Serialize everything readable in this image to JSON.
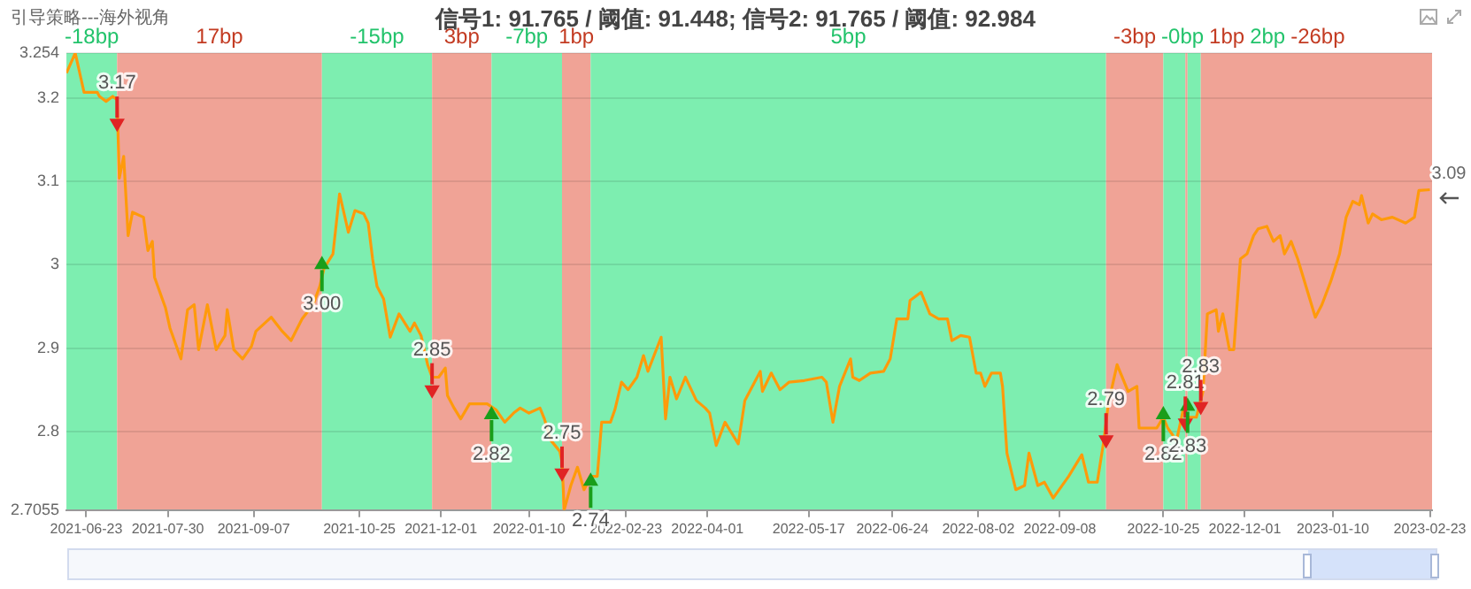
{
  "chart_data": {
    "type": "line",
    "title": "引导策略---海外视角",
    "subtitle": "信号1: 91.765 / 阈值: 91.448; 信号2: 91.765 / 阈值: 92.984",
    "xlim": [
      "2021-06-14",
      "2023-02-24"
    ],
    "xticks": [
      "2021-06-23",
      "2021-07-30",
      "2021-09-07",
      "2021-10-25",
      "2021-12-01",
      "2022-01-10",
      "2022-02-23",
      "2022-04-01",
      "2022-05-17",
      "2022-06-24",
      "2022-08-02",
      "2022-09-08",
      "2022-10-25",
      "2022-12-01",
      "2023-01-10",
      "2023-02-23"
    ],
    "ylim": [
      2.7055,
      3.254
    ],
    "yticks": [
      2.7055,
      2.8,
      2.9,
      3,
      3.1,
      3.2,
      3.254
    ],
    "grid": "y",
    "bands": [
      {
        "axis": "x",
        "from": "2021-06-14",
        "to": "2021-07-07",
        "label": "-18bp",
        "color": "#7deeb0"
      },
      {
        "axis": "x",
        "from": "2021-07-07",
        "to": "2021-10-08",
        "label": "17bp",
        "color": "#f0a396"
      },
      {
        "axis": "x",
        "from": "2021-10-08",
        "to": "2021-11-27",
        "label": "-15bp",
        "color": "#7deeb0"
      },
      {
        "axis": "x",
        "from": "2021-11-27",
        "to": "2021-12-24",
        "label": "3bp",
        "color": "#f0a396"
      },
      {
        "axis": "x",
        "from": "2021-12-24",
        "to": "2022-01-25",
        "label": "-7bp",
        "color": "#7deeb0"
      },
      {
        "axis": "x",
        "from": "2022-01-25",
        "to": "2022-02-07",
        "label": "1bp",
        "color": "#f0a396"
      },
      {
        "axis": "x",
        "from": "2022-02-07",
        "to": "2022-09-29",
        "label": "5bp",
        "color": "#7deeb0"
      },
      {
        "axis": "x",
        "from": "2022-09-29",
        "to": "2022-10-25",
        "label": "-3bp",
        "color": "#f0a396"
      },
      {
        "axis": "x",
        "from": "2022-10-25",
        "to": "2022-11-04",
        "label": "-0bp",
        "color": "#7deeb0"
      },
      {
        "axis": "x",
        "from": "2022-11-04",
        "to": "2022-11-05",
        "label": "1bp",
        "color": "#f0a396"
      },
      {
        "axis": "x",
        "from": "2022-11-05",
        "to": "2022-11-11",
        "label": "2bp",
        "color": "#7deeb0"
      },
      {
        "axis": "x",
        "from": "2022-11-11",
        "to": "2023-02-24",
        "label": "-26bp",
        "color": "#f0a396"
      }
    ],
    "series": [
      {
        "type": "line",
        "color": "#ff9a0a",
        "x": [
          "2021-06-14",
          "2021-06-18",
          "2021-06-22",
          "2021-06-28",
          "2021-06-29",
          "2021-07-02",
          "2021-07-05",
          "2021-07-07",
          "2021-07-08",
          "2021-07-10",
          "2021-07-12",
          "2021-07-14",
          "2021-07-19",
          "2021-07-21",
          "2021-07-23",
          "2021-07-24",
          "2021-07-29",
          "2021-07-31",
          "2021-08-05",
          "2021-08-08",
          "2021-08-11",
          "2021-08-13",
          "2021-08-17",
          "2021-08-21",
          "2021-08-25",
          "2021-08-26",
          "2021-08-29",
          "2021-09-02",
          "2021-09-06",
          "2021-09-08",
          "2021-09-15",
          "2021-09-20",
          "2021-09-24",
          "2021-09-29",
          "2021-10-04",
          "2021-10-07",
          "2021-10-09",
          "2021-10-13",
          "2021-10-16",
          "2021-10-20",
          "2021-10-23",
          "2021-10-27",
          "2021-10-29",
          "2021-10-31",
          "2021-11-02",
          "2021-11-05",
          "2021-11-08",
          "2021-11-12",
          "2021-11-17",
          "2021-11-19",
          "2021-11-22",
          "2021-11-25",
          "2021-11-27",
          "2021-11-30",
          "2021-12-03",
          "2021-12-04",
          "2021-12-07",
          "2021-12-10",
          "2021-12-14",
          "2021-12-22",
          "2021-12-26",
          "2021-12-30",
          "2022-01-03",
          "2022-01-06",
          "2022-01-10",
          "2022-01-15",
          "2022-01-17",
          "2022-01-20",
          "2022-01-24",
          "2022-01-25",
          "2022-01-26",
          "2022-01-29",
          "2022-02-01",
          "2022-02-04",
          "2022-02-07",
          "2022-02-10",
          "2022-02-12",
          "2022-02-16",
          "2022-02-18",
          "2022-02-21",
          "2022-02-24",
          "2022-02-28",
          "2022-03-03",
          "2022-03-05",
          "2022-03-11",
          "2022-03-13",
          "2022-03-15",
          "2022-03-18",
          "2022-03-22",
          "2022-03-27",
          "2022-03-31",
          "2022-04-02",
          "2022-04-05",
          "2022-04-09",
          "2022-04-15",
          "2022-04-18",
          "2022-04-25",
          "2022-04-26",
          "2022-04-30",
          "2022-05-04",
          "2022-05-08",
          "2022-05-15",
          "2022-05-23",
          "2022-05-25",
          "2022-05-28",
          "2022-05-31",
          "2022-06-05",
          "2022-06-06",
          "2022-06-09",
          "2022-06-14",
          "2022-06-20",
          "2022-06-23",
          "2022-06-26",
          "2022-07-01",
          "2022-07-02",
          "2022-07-07",
          "2022-07-11",
          "2022-07-15",
          "2022-07-19",
          "2022-07-21",
          "2022-07-25",
          "2022-07-29",
          "2022-08-01",
          "2022-08-03",
          "2022-08-05",
          "2022-08-08",
          "2022-08-12",
          "2022-08-13",
          "2022-08-15",
          "2022-08-19",
          "2022-08-23",
          "2022-08-25",
          "2022-08-29",
          "2022-09-01",
          "2022-09-05",
          "2022-09-12",
          "2022-09-18",
          "2022-09-21",
          "2022-09-25",
          "2022-09-28",
          "2022-09-30",
          "2022-10-04",
          "2022-10-09",
          "2022-10-13",
          "2022-10-14",
          "2022-10-22",
          "2022-10-25",
          "2022-10-27",
          "2022-10-31",
          "2022-11-03",
          "2022-11-05",
          "2022-11-09",
          "2022-11-12",
          "2022-11-14",
          "2022-11-18",
          "2022-11-19",
          "2022-11-21",
          "2022-11-24",
          "2022-11-26",
          "2022-11-29",
          "2022-12-02",
          "2022-12-05",
          "2022-12-07",
          "2022-12-11",
          "2022-12-14",
          "2022-12-17",
          "2022-12-19",
          "2022-12-22",
          "2022-12-25",
          "2023-01-02",
          "2023-01-05",
          "2023-01-09",
          "2023-01-13",
          "2023-01-16",
          "2023-01-19",
          "2023-01-22",
          "2023-01-23",
          "2023-01-26",
          "2023-01-28",
          "2023-02-01",
          "2023-02-06",
          "2023-02-12",
          "2023-02-16",
          "2023-02-18",
          "2023-02-23"
        ],
        "values": [
          3.23,
          3.254,
          3.207,
          3.207,
          3.202,
          3.196,
          3.202,
          3.198,
          3.104,
          3.13,
          3.035,
          3.063,
          3.057,
          3.017,
          3.028,
          2.985,
          2.948,
          2.924,
          2.887,
          2.946,
          2.952,
          2.898,
          2.952,
          2.898,
          2.915,
          2.946,
          2.898,
          2.887,
          2.902,
          2.92,
          2.937,
          2.92,
          2.909,
          2.935,
          2.952,
          2.974,
          2.996,
          3.013,
          3.085,
          3.039,
          3.065,
          3.061,
          3.05,
          3.007,
          2.974,
          2.959,
          2.913,
          2.941,
          2.92,
          2.93,
          2.915,
          2.88,
          2.865,
          2.865,
          2.876,
          2.843,
          2.828,
          2.815,
          2.833,
          2.833,
          2.826,
          2.811,
          2.822,
          2.828,
          2.822,
          2.828,
          2.815,
          2.789,
          2.776,
          2.763,
          2.706,
          2.735,
          2.757,
          2.73,
          2.746,
          2.746,
          2.811,
          2.811,
          2.826,
          2.859,
          2.85,
          2.865,
          2.891,
          2.872,
          2.913,
          2.815,
          2.865,
          2.839,
          2.865,
          2.837,
          2.828,
          2.822,
          2.783,
          2.811,
          2.785,
          2.837,
          2.872,
          2.848,
          2.87,
          2.85,
          2.859,
          2.861,
          2.865,
          2.859,
          2.811,
          2.854,
          2.887,
          2.865,
          2.861,
          2.87,
          2.872,
          2.887,
          2.935,
          2.935,
          2.957,
          2.967,
          2.941,
          2.935,
          2.935,
          2.909,
          2.915,
          2.913,
          2.87,
          2.87,
          2.854,
          2.87,
          2.87,
          2.854,
          2.774,
          2.73,
          2.735,
          2.774,
          2.735,
          2.739,
          2.72,
          2.746,
          2.772,
          2.739,
          2.739,
          2.789,
          2.833,
          2.88,
          2.848,
          2.854,
          2.804,
          2.804,
          2.817,
          2.804,
          2.789,
          2.826,
          2.817,
          2.817,
          2.848,
          2.941,
          2.946,
          2.92,
          2.941,
          2.898,
          2.898,
          3.007,
          3.013,
          3.035,
          3.043,
          3.046,
          3.028,
          3.035,
          3.013,
          3.028,
          3.007,
          2.937,
          2.952,
          2.98,
          3.013,
          3.057,
          3.076,
          3.072,
          3.083,
          3.05,
          3.061,
          3.054,
          3.057,
          3.05,
          3.057,
          3.089,
          3.09
        ]
      },
      {
        "type": "scatter",
        "color": "#e02424",
        "x": [
          "2021-07-07",
          "2021-11-27",
          "2022-01-25",
          "2022-09-29",
          "2022-11-04",
          "2022-11-11"
        ],
        "values": [
          3.17,
          2.85,
          2.75,
          2.79,
          2.81,
          2.83
        ],
        "value_labels": [
          "3.17",
          "2.85",
          "2.75",
          "2.79",
          "2.81",
          "2.83"
        ]
      },
      {
        "type": "scatter",
        "color": "#1a9e1a",
        "x": [
          "2021-10-08",
          "2021-12-24",
          "2022-02-07",
          "2022-10-25",
          "2022-11-05"
        ],
        "values": [
          3.0,
          2.82,
          2.74,
          2.82,
          2.83
        ],
        "value_labels": [
          "3.00",
          "2.82",
          "2.74",
          "2.82",
          "2.83"
        ]
      }
    ],
    "annotations": [
      {
        "text": "3.09",
        "x": "2023-02-23",
        "y": 3.09
      }
    ]
  }
}
